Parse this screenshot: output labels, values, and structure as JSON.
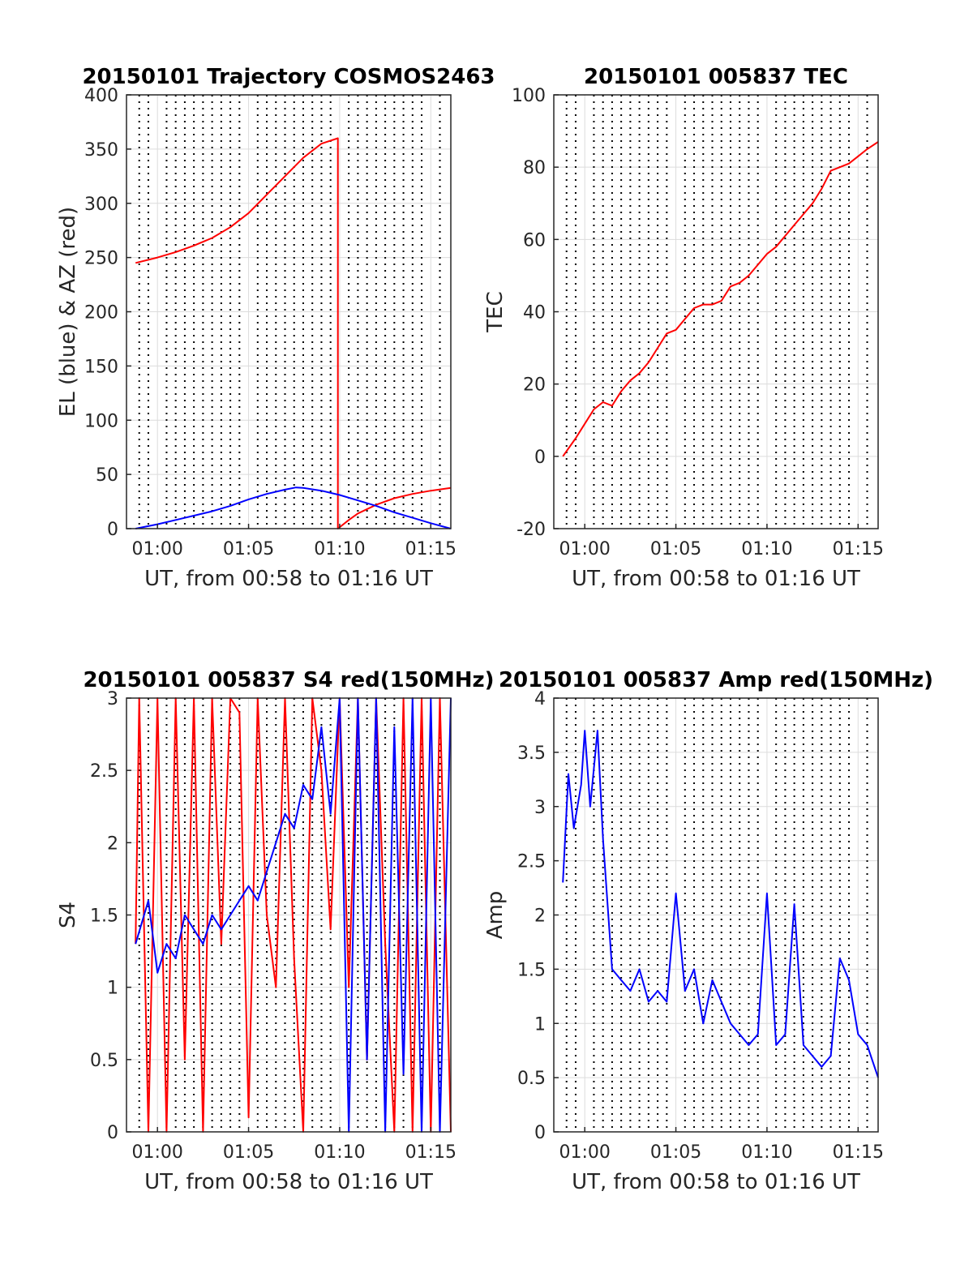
{
  "chart_data": [
    {
      "type": "line",
      "title": "20150101 Trajectory COSMOS2463",
      "xlabel": "UT, from 00:58 to 01:16 UT",
      "ylabel": "EL (blue) & AZ (red)",
      "xlim": [
        58.3,
        76.1
      ],
      "ylim": [
        0,
        400
      ],
      "x_ticks": [
        {
          "v": 60,
          "label": "01:00"
        },
        {
          "v": 65,
          "label": "01:05"
        },
        {
          "v": 70,
          "label": "01:10"
        },
        {
          "v": 75,
          "label": "01:15"
        }
      ],
      "y_ticks": [
        0,
        50,
        100,
        150,
        200,
        250,
        300,
        350,
        400
      ],
      "grid": true,
      "dotted_marker_lines": true,
      "series": [
        {
          "name": "AZ",
          "color": "#ff0000",
          "x": [
            58.8,
            60,
            61,
            62,
            63,
            64,
            65,
            66,
            67,
            68,
            69,
            69.9,
            69.9,
            70.5,
            71,
            72,
            73,
            74,
            75,
            76.1
          ],
          "y": [
            245,
            250,
            255,
            261,
            268,
            278,
            291,
            308,
            325,
            342,
            355,
            360,
            0,
            8,
            14,
            22,
            28,
            32,
            35,
            37.5
          ]
        },
        {
          "name": "EL",
          "color": "#0000ff",
          "x": [
            58.8,
            60,
            61,
            62,
            63,
            64,
            65,
            66,
            67,
            67.6,
            68,
            69,
            70,
            71,
            72,
            73,
            74,
            75,
            76.1
          ],
          "y": [
            0,
            4,
            8,
            12,
            16,
            21,
            27,
            32,
            36,
            38,
            37.5,
            35,
            31,
            26,
            21,
            15,
            10,
            5,
            0
          ]
        }
      ]
    },
    {
      "type": "line",
      "title": "20150101 005837 TEC",
      "xlabel": "UT, from 00:58 to 01:16 UT",
      "ylabel": "TEC",
      "xlim": [
        58.3,
        76.1
      ],
      "ylim": [
        -20,
        100
      ],
      "x_ticks": [
        {
          "v": 60,
          "label": "01:00"
        },
        {
          "v": 65,
          "label": "01:05"
        },
        {
          "v": 70,
          "label": "01:10"
        },
        {
          "v": 75,
          "label": "01:15"
        }
      ],
      "y_ticks": [
        -20,
        0,
        20,
        40,
        60,
        80,
        100
      ],
      "grid": true,
      "dotted_marker_lines": true,
      "series": [
        {
          "name": "TEC",
          "color": "#ff0000",
          "x": [
            58.8,
            59.5,
            60,
            60.5,
            61,
            61.5,
            62,
            62.5,
            63,
            63.5,
            64,
            64.5,
            65,
            65.5,
            66,
            66.5,
            67,
            67.5,
            68,
            68.5,
            69,
            69.5,
            70,
            70.5,
            71,
            71.5,
            72,
            72.5,
            73,
            73.5,
            74,
            74.5,
            75,
            75.5,
            76.1
          ],
          "y": [
            0,
            5,
            9,
            13,
            15,
            14,
            18,
            21,
            23,
            26,
            30,
            34,
            35,
            38,
            41,
            42,
            42,
            43,
            47,
            48,
            50,
            53,
            56,
            58,
            61,
            64,
            67,
            70,
            74,
            79,
            80,
            81,
            83,
            85,
            87
          ]
        }
      ]
    },
    {
      "type": "line",
      "title": "20150101 005837 S4 red(150MHz)",
      "xlabel": "UT, from 00:58 to 01:16 UT",
      "ylabel": "S4",
      "xlim": [
        58.3,
        76.1
      ],
      "ylim": [
        0,
        3
      ],
      "x_ticks": [
        {
          "v": 60,
          "label": "01:00"
        },
        {
          "v": 65,
          "label": "01:05"
        },
        {
          "v": 70,
          "label": "01:10"
        },
        {
          "v": 75,
          "label": "01:15"
        }
      ],
      "y_ticks": [
        0,
        0.5,
        1,
        1.5,
        2,
        2.5,
        3
      ],
      "grid": true,
      "dotted_marker_lines": true,
      "series": [
        {
          "name": "S4 red",
          "color": "#ff0000",
          "x": [
            58.8,
            59,
            59.5,
            60,
            60.5,
            61,
            61.5,
            62,
            62.5,
            63,
            63.5,
            64,
            64.5,
            65,
            65.5,
            66,
            66.5,
            67,
            67.5,
            68,
            68.5,
            69,
            69.5,
            70,
            70.5,
            71,
            71.5,
            72,
            72.5,
            73,
            73.5,
            74,
            74.5,
            75,
            75.5,
            76.1
          ],
          "y": [
            1.3,
            3,
            0,
            3,
            0,
            3,
            0.5,
            3,
            0,
            3,
            1.3,
            3,
            2.9,
            0.1,
            3,
            1.5,
            1.0,
            3,
            1.2,
            0,
            3,
            2.5,
            1.4,
            3,
            1.0,
            3,
            0.5,
            3,
            1.3,
            0,
            3,
            0,
            3,
            0,
            3,
            0
          ]
        },
        {
          "name": "S4 blue",
          "color": "#0000ff",
          "x": [
            58.8,
            59.5,
            60,
            60.5,
            61,
            61.5,
            62,
            62.5,
            63,
            63.5,
            64,
            64.5,
            65,
            65.5,
            66,
            66.5,
            67,
            67.5,
            68,
            68.5,
            69,
            69.5,
            70,
            70.5,
            71,
            71.5,
            72,
            72.5,
            73,
            73.5,
            74,
            74.5,
            75,
            75.5,
            76.1
          ],
          "y": [
            1.3,
            1.6,
            1.1,
            1.3,
            1.2,
            1.5,
            1.4,
            1.3,
            1.5,
            1.4,
            1.5,
            1.6,
            1.7,
            1.6,
            1.8,
            2.0,
            2.2,
            2.1,
            2.4,
            2.3,
            2.8,
            2.2,
            3,
            0,
            3,
            0.5,
            3,
            0,
            2.8,
            0.4,
            3,
            0,
            3,
            0,
            3
          ]
        }
      ]
    },
    {
      "type": "line",
      "title": "20150101 005837 Amp red(150MHz)",
      "xlabel": "UT, from 00:58 to 01:16 UT",
      "ylabel": "Amp",
      "xlim": [
        58.3,
        76.1
      ],
      "ylim": [
        0,
        4
      ],
      "x_ticks": [
        {
          "v": 60,
          "label": "01:00"
        },
        {
          "v": 65,
          "label": "01:05"
        },
        {
          "v": 70,
          "label": "01:10"
        },
        {
          "v": 75,
          "label": "01:15"
        }
      ],
      "y_ticks": [
        0,
        0.5,
        1,
        1.5,
        2,
        2.5,
        3,
        3.5,
        4
      ],
      "grid": true,
      "dotted_marker_lines": true,
      "series": [
        {
          "name": "Amp",
          "color": "#0000ff",
          "x": [
            58.8,
            59.1,
            59.4,
            59.8,
            60,
            60.3,
            60.7,
            61,
            61.5,
            62,
            62.5,
            63,
            63.5,
            64,
            64.5,
            65,
            65.5,
            66,
            66.5,
            67,
            67.5,
            68,
            68.5,
            69,
            69.5,
            70,
            70.5,
            71,
            71.5,
            72,
            72.5,
            73,
            73.5,
            74,
            74.5,
            75,
            75.5,
            76.1
          ],
          "y": [
            2.3,
            3.3,
            2.8,
            3.2,
            3.7,
            3.0,
            3.7,
            2.7,
            1.5,
            1.4,
            1.3,
            1.5,
            1.2,
            1.3,
            1.2,
            2.2,
            1.3,
            1.5,
            1.0,
            1.4,
            1.2,
            1.0,
            0.9,
            0.8,
            0.9,
            2.2,
            0.8,
            0.9,
            2.1,
            0.8,
            0.7,
            0.6,
            0.7,
            1.6,
            1.4,
            0.9,
            0.8,
            0.5
          ]
        }
      ]
    }
  ]
}
